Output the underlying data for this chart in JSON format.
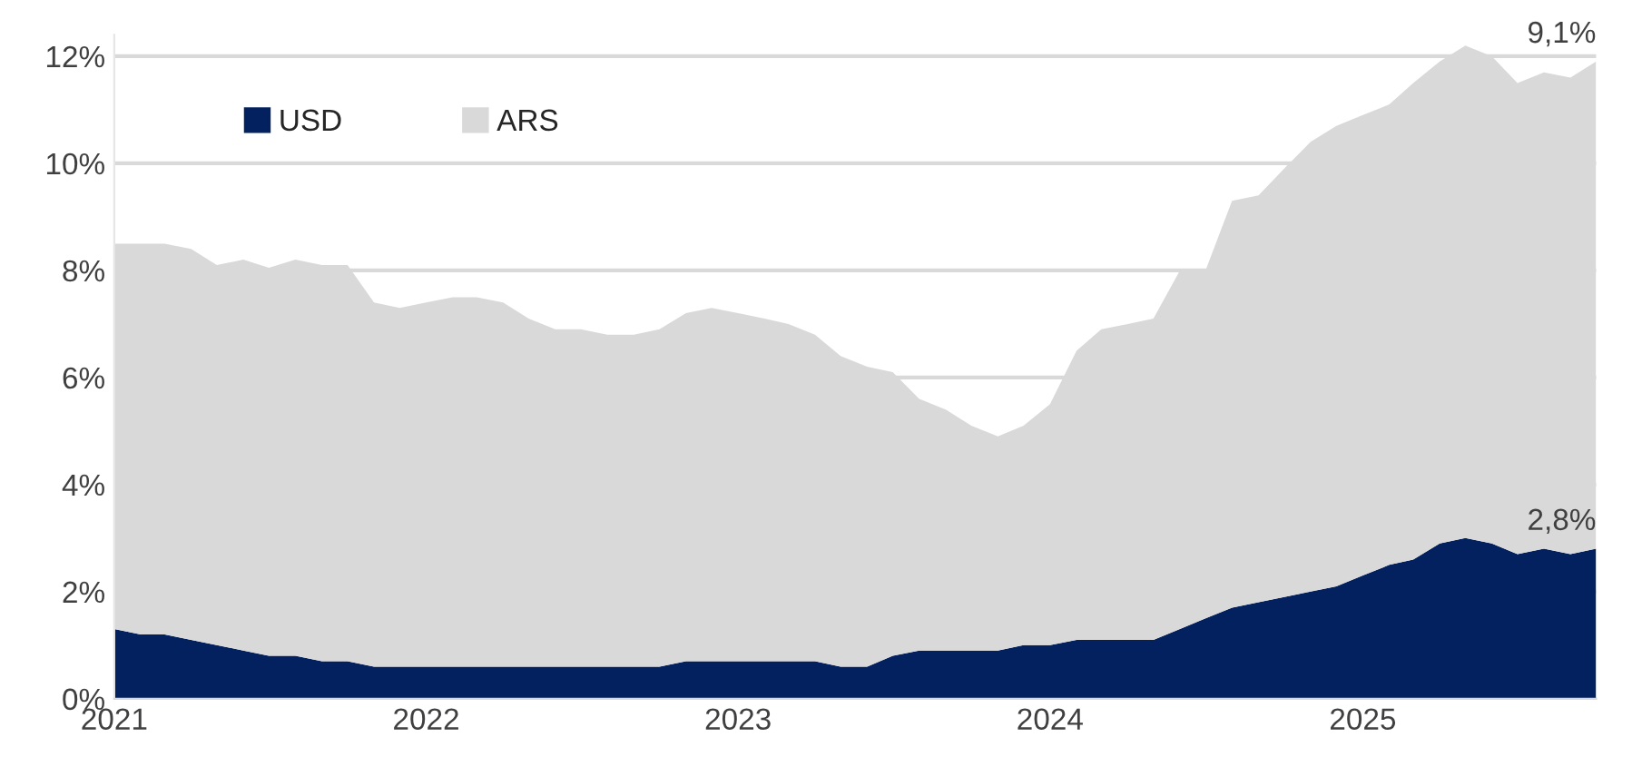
{
  "chart_data": {
    "type": "area",
    "stacked": true,
    "x": [
      "2021-01",
      "2021-02",
      "2021-03",
      "2021-04",
      "2021-05",
      "2021-06",
      "2021-07",
      "2021-08",
      "2021-09",
      "2021-10",
      "2021-11",
      "2021-12",
      "2022-01",
      "2022-02",
      "2022-03",
      "2022-04",
      "2022-05",
      "2022-06",
      "2022-07",
      "2022-08",
      "2022-09",
      "2022-10",
      "2022-11",
      "2022-12",
      "2023-01",
      "2023-02",
      "2023-03",
      "2023-04",
      "2023-05",
      "2023-06",
      "2023-07",
      "2023-08",
      "2023-09",
      "2023-10",
      "2023-11",
      "2023-12",
      "2024-01",
      "2024-02",
      "2024-03",
      "2024-04",
      "2024-05",
      "2024-06",
      "2024-07",
      "2024-08",
      "2024-09",
      "2024-10",
      "2024-11",
      "2024-12",
      "2025-01",
      "2025-02",
      "2025-03",
      "2025-04",
      "2025-05",
      "2025-06",
      "2025-07",
      "2025-08",
      "2025-09",
      "2025-10"
    ],
    "series": [
      {
        "name": "USD",
        "color": "#03215e",
        "values": [
          1.3,
          1.2,
          1.2,
          1.1,
          1.0,
          0.9,
          0.8,
          0.8,
          0.7,
          0.7,
          0.6,
          0.6,
          0.6,
          0.6,
          0.6,
          0.6,
          0.6,
          0.6,
          0.6,
          0.6,
          0.6,
          0.6,
          0.7,
          0.7,
          0.7,
          0.7,
          0.7,
          0.7,
          0.6,
          0.6,
          0.8,
          0.9,
          0.9,
          0.9,
          0.9,
          1.0,
          1.0,
          1.1,
          1.1,
          1.1,
          1.1,
          1.3,
          1.5,
          1.7,
          1.8,
          1.9,
          2.0,
          2.1,
          2.3,
          2.5,
          2.6,
          2.9,
          3.0,
          2.9,
          2.7,
          2.8,
          2.7,
          2.8
        ],
        "value_labels": [
          null,
          null,
          null,
          null,
          null,
          null,
          null,
          null,
          null,
          null,
          null,
          null,
          null,
          null,
          null,
          null,
          null,
          null,
          null,
          null,
          null,
          null,
          null,
          null,
          null,
          null,
          null,
          null,
          null,
          null,
          null,
          null,
          null,
          null,
          null,
          null,
          null,
          null,
          null,
          null,
          null,
          null,
          null,
          null,
          null,
          null,
          null,
          null,
          null,
          null,
          null,
          null,
          null,
          null,
          null,
          null,
          null,
          "2,8%"
        ]
      },
      {
        "name": "ARS",
        "color": "#d9d9d9",
        "values": [
          7.2,
          7.3,
          7.3,
          7.3,
          7.1,
          7.3,
          7.25,
          7.4,
          7.4,
          7.4,
          6.8,
          6.7,
          6.8,
          6.9,
          6.9,
          6.8,
          6.5,
          6.3,
          6.3,
          6.2,
          6.2,
          6.3,
          6.5,
          6.6,
          6.5,
          6.4,
          6.3,
          6.1,
          5.8,
          5.6,
          5.3,
          4.7,
          4.5,
          4.2,
          4.0,
          4.1,
          4.5,
          5.4,
          5.8,
          5.9,
          6.0,
          6.7,
          6.5,
          7.6,
          7.6,
          8.0,
          8.4,
          8.6,
          8.6,
          8.6,
          8.9,
          9.0,
          9.2,
          9.1,
          8.8,
          8.9,
          8.9,
          9.1
        ],
        "value_labels": [
          null,
          null,
          null,
          null,
          null,
          null,
          null,
          null,
          null,
          null,
          null,
          null,
          null,
          null,
          null,
          null,
          null,
          null,
          null,
          null,
          null,
          null,
          null,
          null,
          null,
          null,
          null,
          null,
          null,
          null,
          null,
          null,
          null,
          null,
          null,
          null,
          null,
          null,
          null,
          null,
          null,
          null,
          null,
          null,
          null,
          null,
          null,
          null,
          null,
          null,
          null,
          null,
          null,
          null,
          null,
          null,
          null,
          "9,1%"
        ]
      }
    ],
    "xlim": [
      "2021-01",
      "2025-10"
    ],
    "xticks": [
      {
        "value": "2021-01",
        "label": "2021"
      },
      {
        "value": "2022-01",
        "label": "2022"
      },
      {
        "value": "2023-01",
        "label": "2023"
      },
      {
        "value": "2024-01",
        "label": "2024"
      },
      {
        "value": "2025-01",
        "label": "2025"
      }
    ],
    "ylim": [
      0,
      12.4
    ],
    "yticks": [
      {
        "value": 0,
        "label": "0%"
      },
      {
        "value": 2,
        "label": "2%"
      },
      {
        "value": 4,
        "label": "4%"
      },
      {
        "value": 6,
        "label": "6%"
      },
      {
        "value": 8,
        "label": "8%"
      },
      {
        "value": 10,
        "label": "10%"
      },
      {
        "value": 12,
        "label": "12%"
      }
    ],
    "grid": "y",
    "legend": "top left"
  }
}
